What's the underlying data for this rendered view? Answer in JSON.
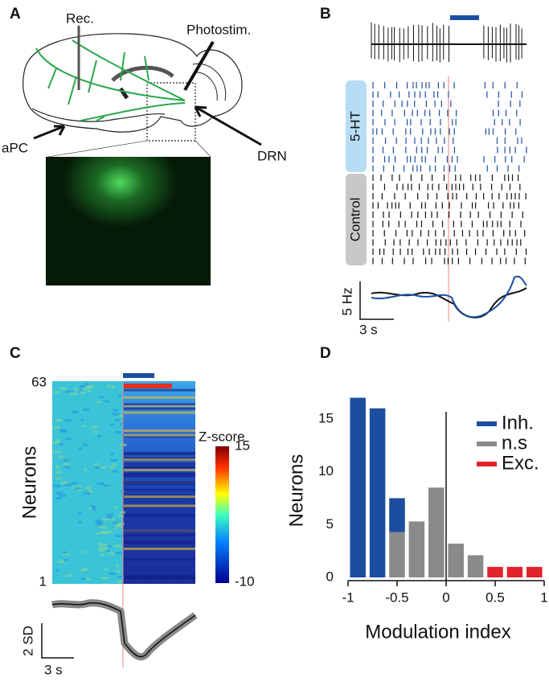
{
  "panels": {
    "A": {
      "letter": "A",
      "recording": "Rec.",
      "stimulation": "Photostim.",
      "region_left": "aPC",
      "region_right": "DRN"
    },
    "B": {
      "letter": "B",
      "group_top": "5-HT",
      "group_bottom": "Control",
      "scale_y": "5 Hz",
      "scale_x": "3 s"
    },
    "C": {
      "letter": "C",
      "y_top": "63",
      "y_bottom": "1",
      "y_label": "Neurons",
      "colorbar_title": "Z-score",
      "colorbar_max": "15",
      "colorbar_min": "-10",
      "scale_y": "2 SD",
      "scale_x": "3 s"
    },
    "D": {
      "letter": "D"
    }
  },
  "chart_data": {
    "type": "histogram",
    "stacked": true,
    "x_label": "Modulation index",
    "y_label": "Neurons",
    "bins": [
      -1,
      -0.8,
      -0.6,
      -0.4,
      -0.2,
      0,
      0.2,
      0.4,
      0.6,
      0.8,
      1
    ],
    "series": [
      {
        "name": "n.s",
        "color": "#8a8a8a",
        "values": [
          0,
          0,
          4.3,
          5.3,
          8.5,
          3.2,
          2.1,
          0,
          0,
          0
        ]
      },
      {
        "name": "Inh.",
        "color": "#1c4ea0",
        "values": [
          17,
          16,
          3.2,
          0,
          0,
          0,
          0,
          0,
          0,
          0
        ]
      },
      {
        "name": "Exc.",
        "color": "#e3232b",
        "values": [
          0,
          0,
          0,
          0,
          0,
          0,
          0,
          1,
          1,
          1
        ]
      }
    ],
    "legend_order": [
      "Inh.",
      "n.s",
      "Exc."
    ],
    "xlim": [
      -1,
      1
    ],
    "xticks": [
      -1,
      -0.5,
      0,
      0.5,
      1
    ],
    "ylim": [
      0,
      17.5
    ],
    "yticks": [
      0,
      5,
      10,
      15
    ]
  }
}
